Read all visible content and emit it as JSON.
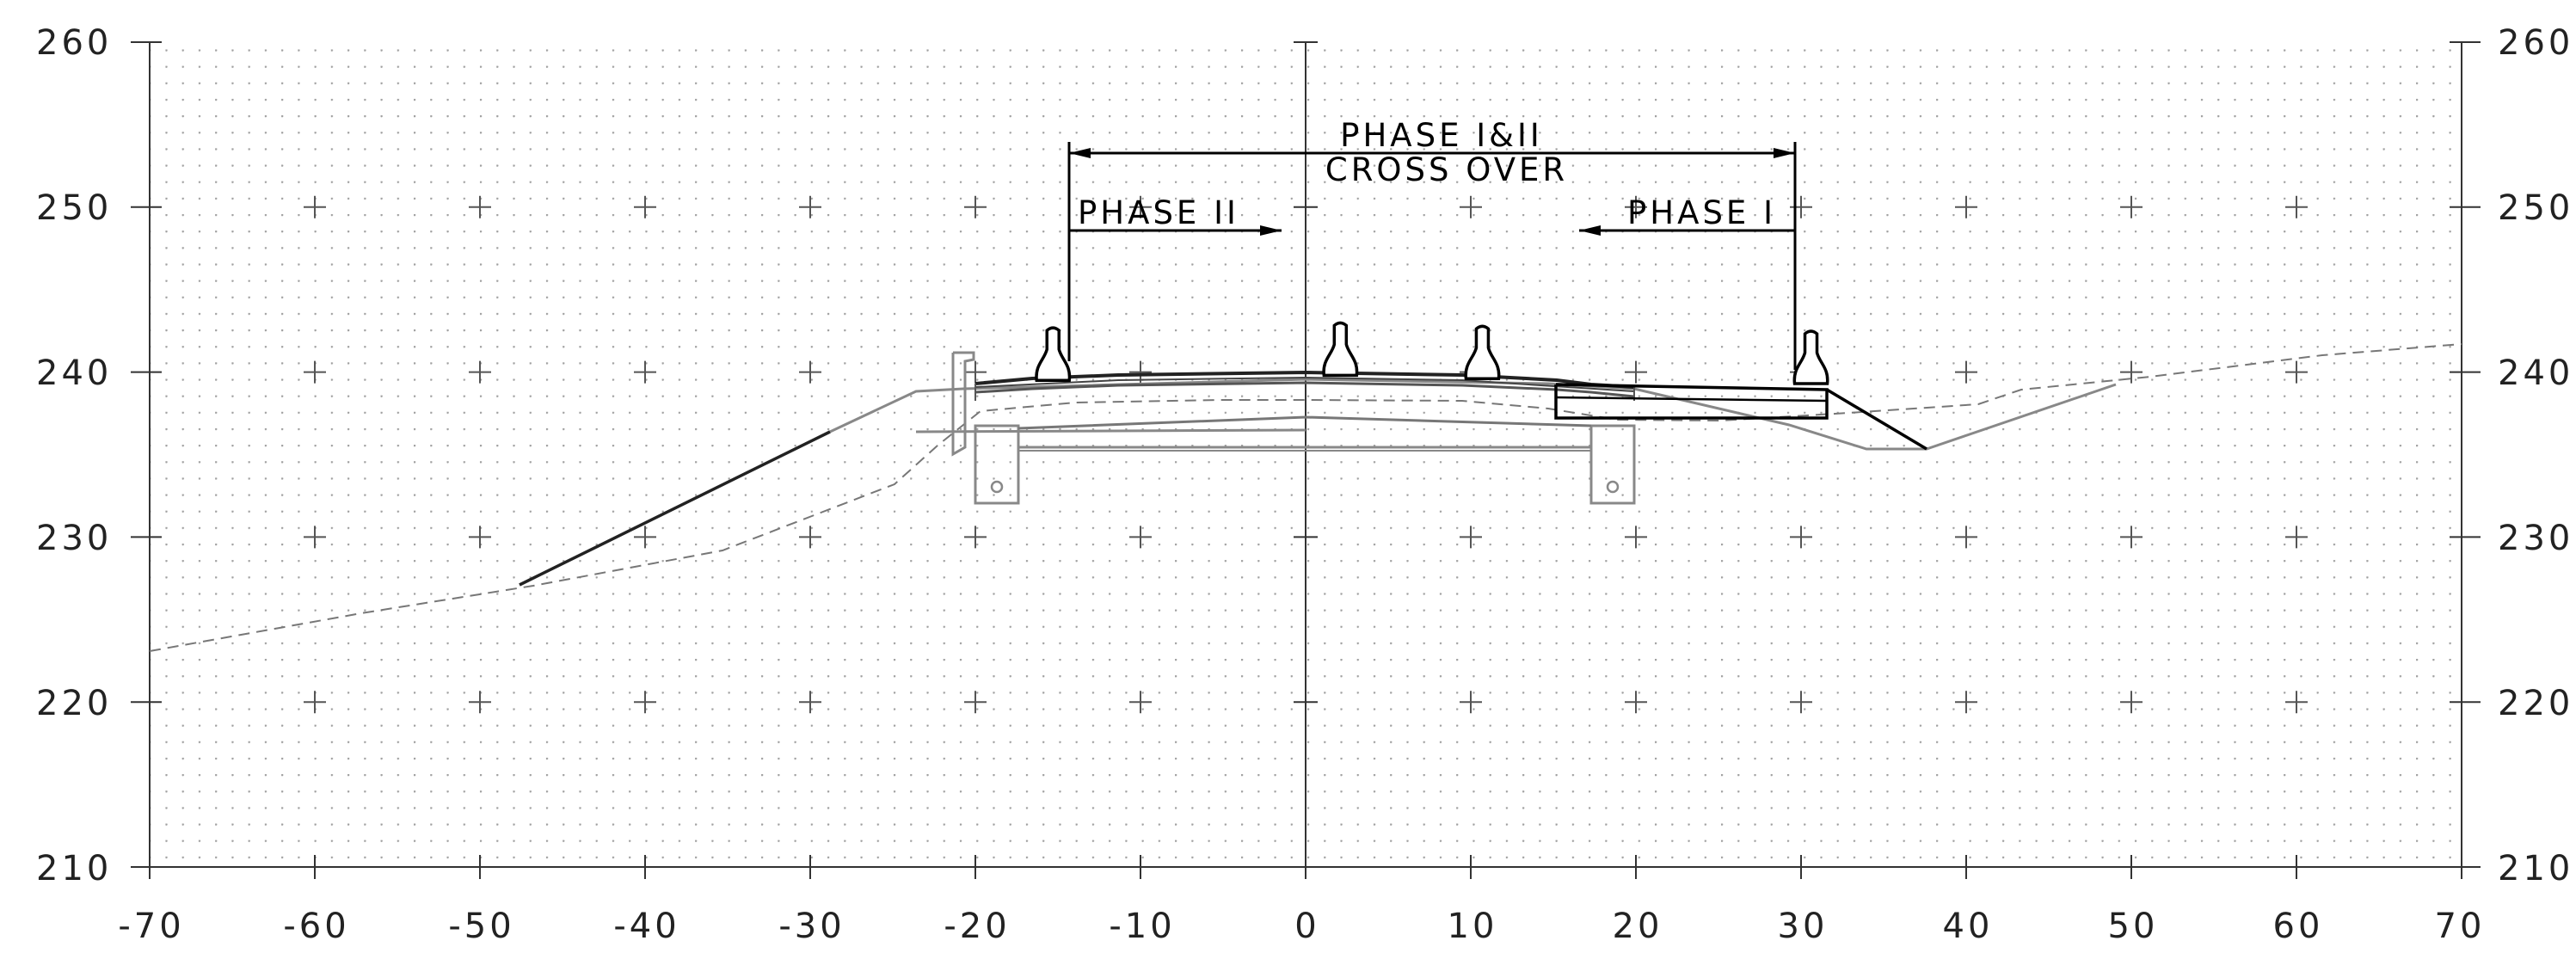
{
  "drawing": {
    "type": "roadway cross section",
    "x_axis": {
      "range": [
        -70,
        70
      ],
      "step": 10,
      "ticks": [
        "-70",
        "-60",
        "-50",
        "-40",
        "-30",
        "-20",
        "-10",
        "0",
        "10",
        "20",
        "30",
        "40",
        "50",
        "60",
        "70"
      ]
    },
    "y_axis": {
      "range": [
        210,
        260
      ],
      "step": 10,
      "ticks": [
        "260",
        "250",
        "240",
        "230",
        "220",
        "210"
      ]
    },
    "grid": "dotted",
    "colors": {
      "line": "#000000",
      "existing": "#8a8a8a",
      "grid_dot": "#9a9a9a"
    }
  },
  "labels": {
    "crossover_line1": "PHASE I&II",
    "crossover_line2": "CROSS OVER",
    "phase2": "PHASE II",
    "phase1": "PHASE I"
  },
  "dimensions": {
    "crossover": {
      "from": -14.5,
      "to": 29.5,
      "elev": 253.4
    },
    "phase2": {
      "from": -14.5,
      "to": -1.5,
      "elev": 248.6
    },
    "phase1": {
      "from": 16.5,
      "to": 29.5,
      "elev": 248.6
    }
  },
  "barriers": [
    {
      "x": -15.3,
      "elev": 239.5
    },
    {
      "x": 2.1,
      "elev": 239.8
    },
    {
      "x": 10.7,
      "elev": 239.6
    },
    {
      "x": 30.6,
      "elev": 239.3
    }
  ]
}
